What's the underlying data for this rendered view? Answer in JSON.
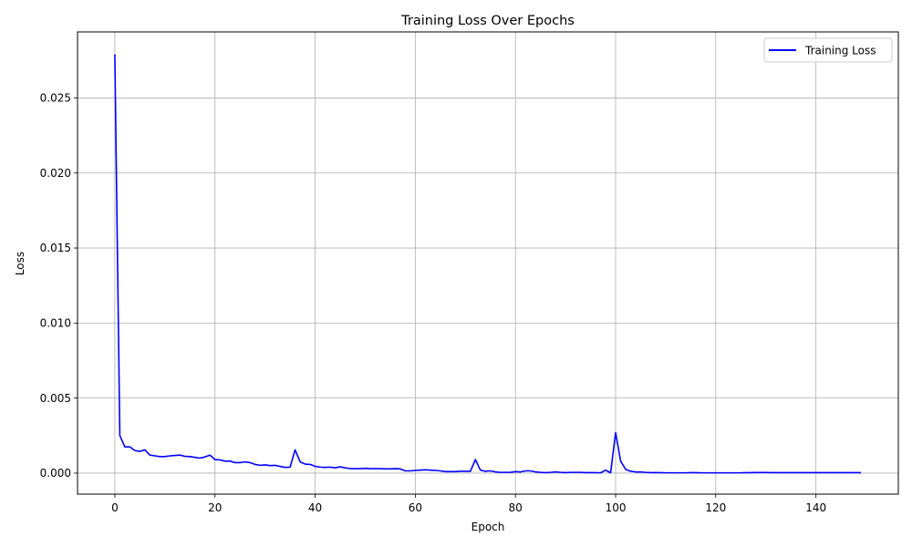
{
  "chart_data": {
    "type": "line",
    "title": "Training Loss Over Epochs",
    "xlabel": "Epoch",
    "ylabel": "Loss",
    "xlim": [
      -7.45,
      156.45
    ],
    "ylim": [
      -0.0014,
      0.0294
    ],
    "xticks": [
      0,
      20,
      40,
      60,
      80,
      100,
      120,
      140
    ],
    "yticks": [
      0.0,
      0.005,
      0.01,
      0.015,
      0.02,
      0.025
    ],
    "ytick_labels": [
      "0.000",
      "0.005",
      "0.010",
      "0.015",
      "0.020",
      "0.025"
    ],
    "grid": true,
    "legend_placement": "top-right",
    "series": [
      {
        "name": "Training Loss",
        "color": "#0000ff",
        "x": [
          0,
          1,
          2,
          3,
          4,
          5,
          6,
          7,
          8,
          9,
          10,
          11,
          12,
          13,
          14,
          15,
          16,
          17,
          18,
          19,
          20,
          21,
          22,
          23,
          24,
          25,
          26,
          27,
          28,
          29,
          30,
          31,
          32,
          33,
          34,
          35,
          36,
          37,
          38,
          39,
          40,
          41,
          42,
          43,
          44,
          45,
          46,
          47,
          48,
          49,
          50,
          51,
          52,
          53,
          54,
          55,
          56,
          57,
          58,
          59,
          60,
          61,
          62,
          63,
          64,
          65,
          66,
          67,
          68,
          69,
          70,
          71,
          72,
          73,
          74,
          75,
          76,
          77,
          78,
          79,
          80,
          81,
          82,
          83,
          84,
          85,
          86,
          87,
          88,
          89,
          90,
          91,
          92,
          93,
          94,
          95,
          96,
          97,
          98,
          99,
          100,
          101,
          102,
          103,
          104,
          105,
          106,
          107,
          108,
          109,
          110,
          111,
          112,
          113,
          114,
          115,
          116,
          117,
          118,
          119,
          120,
          121,
          122,
          123,
          124,
          125,
          126,
          127,
          128,
          129,
          130,
          131,
          132,
          133,
          134,
          135,
          136,
          137,
          138,
          139,
          140,
          141,
          142,
          143,
          144,
          145,
          146,
          147,
          148,
          149
        ],
        "y": [
          0.0279,
          0.0025,
          0.00175,
          0.00175,
          0.0015,
          0.00145,
          0.00155,
          0.0012,
          0.00115,
          0.0011,
          0.0011,
          0.00115,
          0.00118,
          0.0012,
          0.00112,
          0.0011,
          0.00105,
          0.001,
          0.00108,
          0.0012,
          0.0009,
          0.00088,
          0.0008,
          0.0008,
          0.0007,
          0.0007,
          0.00075,
          0.0007,
          0.00058,
          0.00052,
          0.00055,
          0.0005,
          0.00052,
          0.00045,
          0.00038,
          0.0004,
          0.00155,
          0.00075,
          0.0006,
          0.00058,
          0.00045,
          0.0004,
          0.00038,
          0.0004,
          0.00035,
          0.00042,
          0.00035,
          0.0003,
          0.0003,
          0.0003,
          0.00032,
          0.0003,
          0.0003,
          0.0003,
          0.00028,
          0.00028,
          0.0003,
          0.00028,
          0.00015,
          0.00015,
          0.00018,
          0.0002,
          0.00022,
          0.0002,
          0.00018,
          0.00015,
          0.0001,
          0.0001,
          0.0001,
          0.00012,
          0.00012,
          0.00012,
          0.0009,
          0.0002,
          0.00012,
          0.00015,
          8e-05,
          5e-05,
          5e-05,
          5e-05,
          0.0001,
          8e-05,
          0.00015,
          0.00015,
          8e-05,
          5e-05,
          3e-05,
          5e-05,
          8e-05,
          5e-05,
          3e-05,
          5e-05,
          5e-05,
          5e-05,
          3e-05,
          3e-05,
          3e-05,
          2e-05,
          0.0002,
          2e-05,
          0.0027,
          0.0008,
          0.00025,
          0.00012,
          8e-05,
          8e-05,
          5e-05,
          3e-05,
          3e-05,
          3e-05,
          2e-05,
          2e-05,
          2e-05,
          2e-05,
          2e-05,
          3e-05,
          3e-05,
          2e-05,
          2e-05,
          2e-05,
          2e-05,
          2e-05,
          2e-05,
          2e-05,
          2e-05,
          2e-05,
          3e-05,
          3e-05,
          4e-05,
          4e-05,
          4e-05,
          3e-05,
          3e-05,
          3e-05,
          3e-05,
          3e-05,
          3e-05,
          3e-05,
          3e-05,
          3e-05,
          3e-05,
          3e-05,
          3e-05,
          3e-05,
          3e-05,
          3e-05,
          3e-05,
          3e-05,
          3e-05,
          3e-05
        ]
      }
    ]
  }
}
